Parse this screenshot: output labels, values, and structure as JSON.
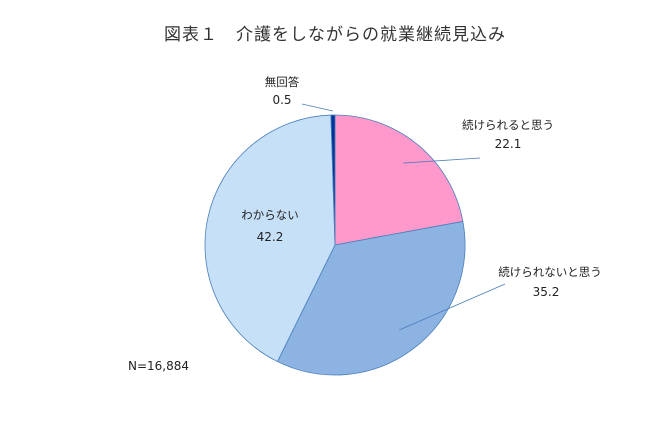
{
  "chart_data": {
    "type": "pie",
    "title": "図表１　介護をしながらの就業継続見込み",
    "note": "N=16,884",
    "slices": [
      {
        "label": "続けられると思う",
        "value": 22.1,
        "color": "#FF99CC"
      },
      {
        "label": "続けられないと思う",
        "value": 35.2,
        "color": "#8DB3E2"
      },
      {
        "label": "わからない",
        "value": 42.2,
        "color": "#C6E0F8"
      },
      {
        "label": "無回答",
        "value": 0.5,
        "color": "#003399"
      }
    ],
    "start": "12 o'clock",
    "direction": "clockwise"
  }
}
